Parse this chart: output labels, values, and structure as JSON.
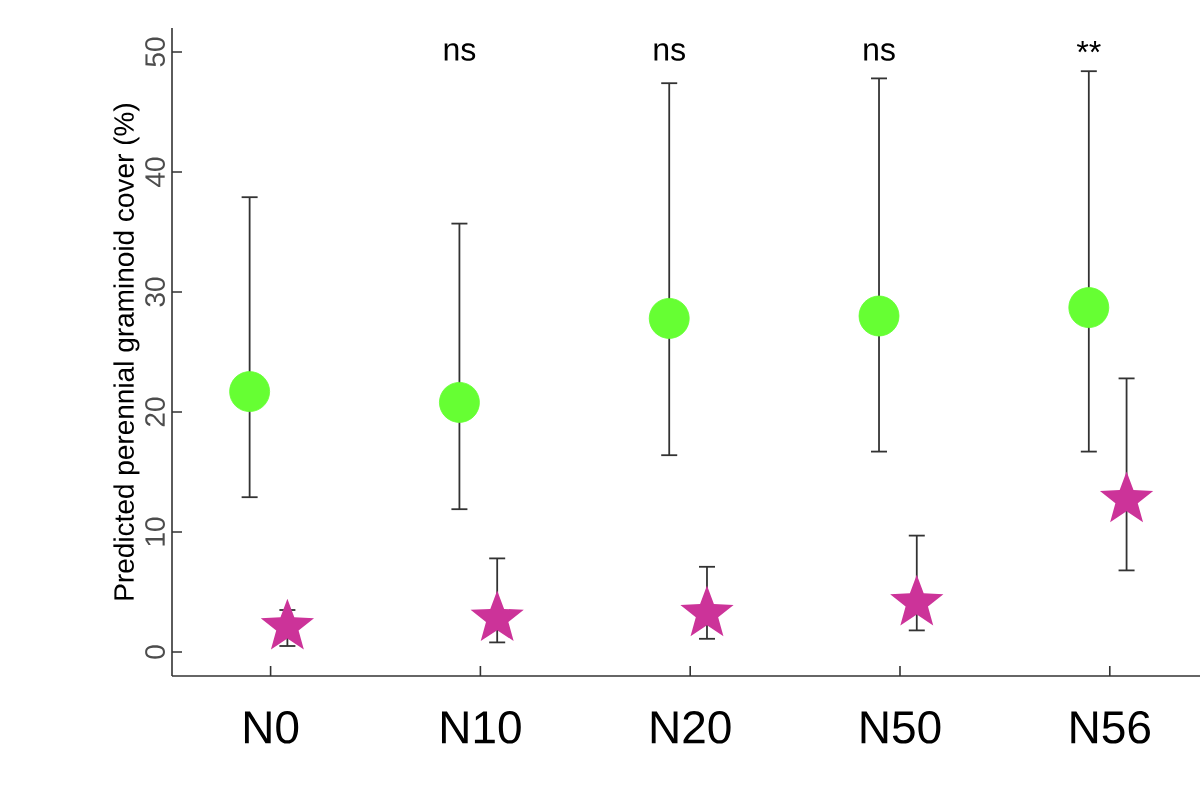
{
  "chart_data": {
    "type": "scatter",
    "ylabel": "Predicted perennial graminoid cover (%)",
    "categories": [
      "N0",
      "N10",
      "N20",
      "N50",
      "N56"
    ],
    "series": [
      {
        "color": "#66ff33",
        "marker": "circle",
        "values": [
          21.7,
          20.8,
          27.8,
          28,
          28.7
        ],
        "errors": [
          [
            12.9,
            37.9
          ],
          [
            11.9,
            35.7
          ],
          [
            16.4,
            47.4
          ],
          [
            16.7,
            47.8
          ],
          [
            16.7,
            48.4
          ]
        ]
      },
      {
        "color": "#cc3399",
        "marker": "star",
        "values": [
          2.1,
          2.8,
          3.2,
          4.1,
          12.7
        ],
        "errors": [
          [
            0.5,
            3.5
          ],
          [
            0.8,
            7.8
          ],
          [
            1.1,
            7.1
          ],
          [
            1.8,
            9.7
          ],
          [
            6.8,
            22.8
          ]
        ]
      }
    ],
    "annotations": [
      "ns",
      "ns",
      "ns",
      "**"
    ],
    "ylim": [
      -2,
      52
    ],
    "yticks": [
      0,
      10,
      20,
      30,
      40,
      50
    ],
    "grid": false
  }
}
